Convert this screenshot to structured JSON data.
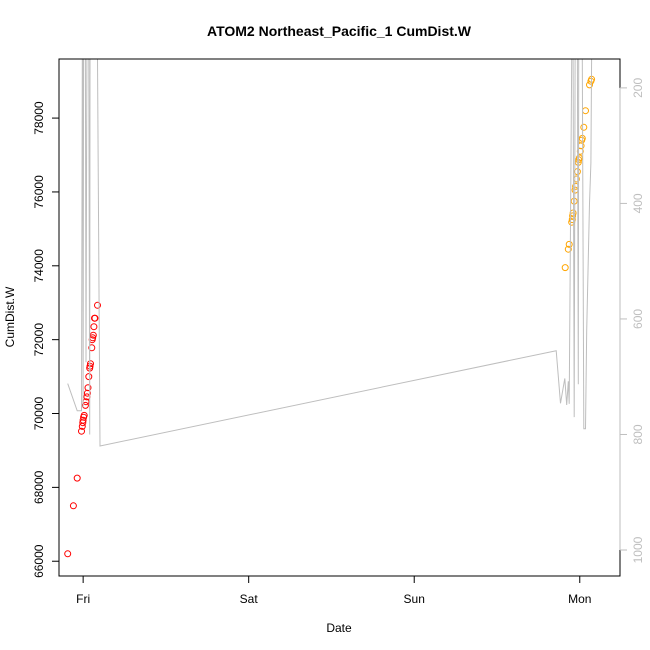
{
  "chart_data": {
    "type": "scatter",
    "title": "ATOM2 Northeast_Pacific_1 CumDist.W",
    "xlabel": "Date",
    "ylabel": "CumDist.W",
    "x_axis": {
      "kind": "date",
      "ticks": [
        "Fri",
        "Sat",
        "Sun",
        "Mon"
      ],
      "range": [
        "Thu 20:30",
        "Mon 05:50"
      ]
    },
    "y_axis": {
      "ticks": [
        66000,
        68000,
        70000,
        72000,
        74000,
        76000,
        78000
      ],
      "range": [
        65600,
        79600
      ]
    },
    "y_axis_right": {
      "ticks": [
        200,
        400,
        600,
        800,
        1000
      ],
      "range": [
        1045,
        150
      ],
      "reversed": true,
      "color": "#bebebe"
    },
    "grid": false,
    "series": [
      {
        "color": "#ff0000",
        "marker": "open-circle",
        "points": [
          [
            "Thu 21:46",
            66200
          ],
          [
            "Thu 22:35",
            67500
          ],
          [
            "Thu 23:08",
            68250
          ],
          [
            "Thu 23:46",
            69520
          ],
          [
            "Thu 23:53",
            69650
          ],
          [
            "Thu 23:57",
            69750
          ],
          [
            "Fri 00:00",
            69820
          ],
          [
            "Fri 00:04",
            69900
          ],
          [
            "Fri 00:09",
            69950
          ],
          [
            "Fri 00:20",
            70220
          ],
          [
            "Fri 00:25",
            70320
          ],
          [
            "Fri 00:33",
            70450
          ],
          [
            "Fri 00:37",
            70550
          ],
          [
            "Fri 00:42",
            70700
          ],
          [
            "Fri 00:49",
            71000
          ],
          [
            "Fri 00:57",
            71230
          ],
          [
            "Fri 01:00",
            71280
          ],
          [
            "Fri 01:04",
            71350
          ],
          [
            "Fri 01:15",
            71780
          ],
          [
            "Fri 01:19",
            72000
          ],
          [
            "Fri 01:23",
            72050
          ],
          [
            "Fri 01:28",
            72120
          ],
          [
            "Fri 01:34",
            72350
          ],
          [
            "Fri 01:39",
            72580
          ],
          [
            "Fri 01:43",
            72580
          ],
          [
            "Fri 02:05",
            72930
          ]
        ]
      },
      {
        "color": "#ffa500",
        "marker": "open-circle",
        "points": [
          [
            "Sun 21:53",
            73950
          ],
          [
            "Sun 22:20",
            74450
          ],
          [
            "Sun 22:28",
            74580
          ],
          [
            "Sun 22:50",
            75180
          ],
          [
            "Sun 22:55",
            75250
          ],
          [
            "Sun 22:58",
            75350
          ],
          [
            "Sun 23:02",
            75430
          ],
          [
            "Sun 23:12",
            75750
          ],
          [
            "Sun 23:19",
            76050
          ],
          [
            "Sun 23:24",
            76150
          ],
          [
            "Sun 23:31",
            76350
          ],
          [
            "Sun 23:39",
            76550
          ],
          [
            "Sun 23:47",
            76800
          ],
          [
            "Sun 23:51",
            76870
          ],
          [
            "Sun 23:57",
            76920
          ],
          [
            "Mon 00:05",
            77100
          ],
          [
            "Mon 00:12",
            77250
          ],
          [
            "Mon 00:17",
            77400
          ],
          [
            "Mon 00:22",
            77450
          ],
          [
            "Mon 00:35",
            77750
          ],
          [
            "Mon 00:50",
            78200
          ],
          [
            "Mon 01:25",
            78900
          ],
          [
            "Mon 01:37",
            79000
          ],
          [
            "Mon 01:43",
            79050
          ]
        ]
      },
      {
        "color": "#bebebe",
        "marker": "line",
        "axis": "right",
        "points": [
          [
            "Thu 21:46",
            712
          ],
          [
            "Thu 23:08",
            759
          ],
          [
            "Thu 23:46",
            759
          ],
          [
            "Thu 23:53",
            150
          ],
          [
            "Thu 23:57",
            150
          ],
          [
            "Fri 00:00",
            753
          ],
          [
            "Fri 00:04",
            150
          ],
          [
            "Fri 00:09",
            150
          ],
          [
            "Fri 00:20",
            150
          ],
          [
            "Fri 00:25",
            675
          ],
          [
            "Fri 00:33",
            150
          ],
          [
            "Fri 00:42",
            150
          ],
          [
            "Fri 00:49",
            150
          ],
          [
            "Fri 00:57",
            800
          ],
          [
            "Fri 01:00",
            150
          ],
          [
            "Fri 01:04",
            150
          ],
          [
            "Fri 01:15",
            150
          ],
          [
            "Fri 01:19",
            150
          ],
          [
            "Fri 01:23",
            150
          ],
          [
            "Fri 01:28",
            150
          ],
          [
            "Fri 01:34",
            150
          ],
          [
            "Fri 01:39",
            150
          ],
          [
            "Fri 01:43",
            150
          ],
          [
            "Fri 01:53",
            150
          ],
          [
            "Fri 02:05",
            150
          ],
          [
            "Fri 02:27",
            820
          ],
          [
            "Sun 20:35",
            655
          ],
          [
            "Sun 21:12",
            746
          ],
          [
            "Sun 21:50",
            703
          ],
          [
            "Sun 22:06",
            749
          ],
          [
            "Sun 22:20",
            708
          ],
          [
            "Sun 22:28",
            747
          ],
          [
            "Sun 22:50",
            150
          ],
          [
            "Sun 22:55",
            150
          ],
          [
            "Sun 22:58",
            150
          ],
          [
            "Sun 23:02",
            150
          ],
          [
            "Sun 23:12",
            770
          ],
          [
            "Sun 23:19",
            150
          ],
          [
            "Sun 23:24",
            150
          ],
          [
            "Sun 23:31",
            150
          ],
          [
            "Sun 23:39",
            150
          ],
          [
            "Sun 23:47",
            713
          ],
          [
            "Sun 23:51",
            150
          ],
          [
            "Sun 23:57",
            150
          ],
          [
            "Mon 00:05",
            150
          ],
          [
            "Mon 00:12",
            150
          ],
          [
            "Mon 00:17",
            150
          ],
          [
            "Mon 00:22",
            150
          ],
          [
            "Mon 00:35",
            790
          ],
          [
            "Mon 00:50",
            790
          ],
          [
            "Mon 01:00",
            620
          ],
          [
            "Mon 01:25",
            400
          ],
          [
            "Mon 01:37",
            330
          ],
          [
            "Mon 01:43",
            150
          ]
        ]
      }
    ]
  }
}
